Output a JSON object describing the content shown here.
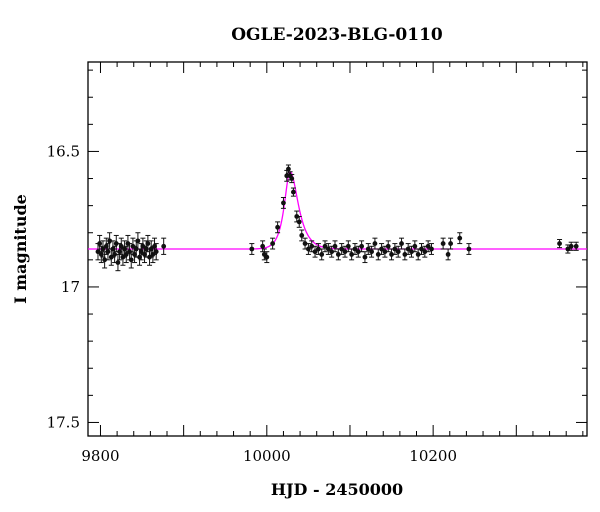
{
  "chart_data": {
    "type": "scatter",
    "title": "OGLE-2023-BLG-0110",
    "xlabel": "HJD - 2450000",
    "ylabel": "I magnitude",
    "xlim": [
      9785,
      10385
    ],
    "ylim": [
      17.55,
      16.17
    ],
    "y_inverted": true,
    "x_ticks": [
      9800,
      10000,
      10200
    ],
    "y_ticks": [
      16.5,
      17,
      17.5
    ],
    "x_tick_labels": [
      "9800",
      "10000",
      "10200"
    ],
    "y_tick_labels": [
      "16.5",
      "17",
      "17.5"
    ],
    "grid": false,
    "colors": {
      "points": "#111111",
      "model": "#ff00ff",
      "frame": "#000000"
    },
    "model": {
      "name": "",
      "baseline_mag": 16.86,
      "peak_time": 10028,
      "peak_mag": 16.575,
      "rise_width": 9,
      "tail_width": 13
    },
    "series": [
      {
        "type": "errorbar",
        "points": [
          {
            "x": 9797,
            "y": 16.87,
            "err": 0.03
          },
          {
            "x": 9799,
            "y": 16.84,
            "err": 0.03
          },
          {
            "x": 9801,
            "y": 16.88,
            "err": 0.03
          },
          {
            "x": 9803,
            "y": 16.86,
            "err": 0.03
          },
          {
            "x": 9805,
            "y": 16.9,
            "err": 0.03
          },
          {
            "x": 9807,
            "y": 16.85,
            "err": 0.03
          },
          {
            "x": 9809,
            "y": 16.87,
            "err": 0.03
          },
          {
            "x": 9811,
            "y": 16.83,
            "err": 0.03
          },
          {
            "x": 9813,
            "y": 16.89,
            "err": 0.03
          },
          {
            "x": 9815,
            "y": 16.86,
            "err": 0.03
          },
          {
            "x": 9817,
            "y": 16.88,
            "err": 0.03
          },
          {
            "x": 9819,
            "y": 16.84,
            "err": 0.03
          },
          {
            "x": 9821,
            "y": 16.91,
            "err": 0.03
          },
          {
            "x": 9823,
            "y": 16.87,
            "err": 0.03
          },
          {
            "x": 9825,
            "y": 16.85,
            "err": 0.03
          },
          {
            "x": 9827,
            "y": 16.89,
            "err": 0.03
          },
          {
            "x": 9829,
            "y": 16.86,
            "err": 0.03
          },
          {
            "x": 9831,
            "y": 16.88,
            "err": 0.03
          },
          {
            "x": 9833,
            "y": 16.84,
            "err": 0.03
          },
          {
            "x": 9835,
            "y": 16.87,
            "err": 0.03
          },
          {
            "x": 9837,
            "y": 16.9,
            "err": 0.03
          },
          {
            "x": 9839,
            "y": 16.85,
            "err": 0.03
          },
          {
            "x": 9841,
            "y": 16.88,
            "err": 0.03
          },
          {
            "x": 9843,
            "y": 16.86,
            "err": 0.03
          },
          {
            "x": 9845,
            "y": 16.83,
            "err": 0.03
          },
          {
            "x": 9847,
            "y": 16.89,
            "err": 0.03
          },
          {
            "x": 9849,
            "y": 16.87,
            "err": 0.03
          },
          {
            "x": 9851,
            "y": 16.85,
            "err": 0.03
          },
          {
            "x": 9853,
            "y": 16.88,
            "err": 0.03
          },
          {
            "x": 9855,
            "y": 16.86,
            "err": 0.03
          },
          {
            "x": 9857,
            "y": 16.84,
            "err": 0.03
          },
          {
            "x": 9859,
            "y": 16.89,
            "err": 0.03
          },
          {
            "x": 9861,
            "y": 16.86,
            "err": 0.03
          },
          {
            "x": 9863,
            "y": 16.88,
            "err": 0.03
          },
          {
            "x": 9865,
            "y": 16.85,
            "err": 0.03
          },
          {
            "x": 9867,
            "y": 16.87,
            "err": 0.03
          },
          {
            "x": 9876,
            "y": 16.85,
            "err": 0.03
          },
          {
            "x": 9982,
            "y": 16.86,
            "err": 0.02
          },
          {
            "x": 9995,
            "y": 16.85,
            "err": 0.02
          },
          {
            "x": 9997,
            "y": 16.88,
            "err": 0.02
          },
          {
            "x": 10000,
            "y": 16.89,
            "err": 0.02
          },
          {
            "x": 10007,
            "y": 16.84,
            "err": 0.02
          },
          {
            "x": 10013,
            "y": 16.78,
            "err": 0.02
          },
          {
            "x": 10020,
            "y": 16.69,
            "err": 0.02
          },
          {
            "x": 10024,
            "y": 16.59,
            "err": 0.02
          },
          {
            "x": 10026,
            "y": 16.565,
            "err": 0.015
          },
          {
            "x": 10028,
            "y": 16.59,
            "err": 0.015
          },
          {
            "x": 10030,
            "y": 16.6,
            "err": 0.015
          },
          {
            "x": 10032,
            "y": 16.65,
            "err": 0.015
          },
          {
            "x": 10036,
            "y": 16.74,
            "err": 0.02
          },
          {
            "x": 10039,
            "y": 16.76,
            "err": 0.02
          },
          {
            "x": 10042,
            "y": 16.81,
            "err": 0.02
          },
          {
            "x": 10046,
            "y": 16.84,
            "err": 0.02
          },
          {
            "x": 10050,
            "y": 16.86,
            "err": 0.02
          },
          {
            "x": 10054,
            "y": 16.85,
            "err": 0.02
          },
          {
            "x": 10058,
            "y": 16.87,
            "err": 0.02
          },
          {
            "x": 10062,
            "y": 16.86,
            "err": 0.02
          },
          {
            "x": 10066,
            "y": 16.88,
            "err": 0.02
          },
          {
            "x": 10070,
            "y": 16.85,
            "err": 0.02
          },
          {
            "x": 10074,
            "y": 16.86,
            "err": 0.02
          },
          {
            "x": 10078,
            "y": 16.87,
            "err": 0.02
          },
          {
            "x": 10082,
            "y": 16.85,
            "err": 0.02
          },
          {
            "x": 10086,
            "y": 16.88,
            "err": 0.02
          },
          {
            "x": 10090,
            "y": 16.86,
            "err": 0.02
          },
          {
            "x": 10094,
            "y": 16.87,
            "err": 0.02
          },
          {
            "x": 10098,
            "y": 16.85,
            "err": 0.02
          },
          {
            "x": 10102,
            "y": 16.88,
            "err": 0.02
          },
          {
            "x": 10106,
            "y": 16.86,
            "err": 0.02
          },
          {
            "x": 10110,
            "y": 16.87,
            "err": 0.02
          },
          {
            "x": 10114,
            "y": 16.85,
            "err": 0.02
          },
          {
            "x": 10118,
            "y": 16.89,
            "err": 0.02
          },
          {
            "x": 10122,
            "y": 16.86,
            "err": 0.02
          },
          {
            "x": 10126,
            "y": 16.87,
            "err": 0.02
          },
          {
            "x": 10130,
            "y": 16.84,
            "err": 0.02
          },
          {
            "x": 10134,
            "y": 16.88,
            "err": 0.02
          },
          {
            "x": 10138,
            "y": 16.86,
            "err": 0.02
          },
          {
            "x": 10142,
            "y": 16.87,
            "err": 0.02
          },
          {
            "x": 10146,
            "y": 16.85,
            "err": 0.02
          },
          {
            "x": 10150,
            "y": 16.88,
            "err": 0.02
          },
          {
            "x": 10154,
            "y": 16.86,
            "err": 0.02
          },
          {
            "x": 10158,
            "y": 16.87,
            "err": 0.02
          },
          {
            "x": 10162,
            "y": 16.84,
            "err": 0.02
          },
          {
            "x": 10166,
            "y": 16.88,
            "err": 0.02
          },
          {
            "x": 10170,
            "y": 16.86,
            "err": 0.02
          },
          {
            "x": 10174,
            "y": 16.87,
            "err": 0.02
          },
          {
            "x": 10178,
            "y": 16.85,
            "err": 0.02
          },
          {
            "x": 10182,
            "y": 16.88,
            "err": 0.02
          },
          {
            "x": 10186,
            "y": 16.86,
            "err": 0.02
          },
          {
            "x": 10190,
            "y": 16.87,
            "err": 0.02
          },
          {
            "x": 10194,
            "y": 16.85,
            "err": 0.02
          },
          {
            "x": 10198,
            "y": 16.86,
            "err": 0.02
          },
          {
            "x": 10212,
            "y": 16.84,
            "err": 0.02
          },
          {
            "x": 10218,
            "y": 16.88,
            "err": 0.02
          },
          {
            "x": 10221,
            "y": 16.84,
            "err": 0.02
          },
          {
            "x": 10232,
            "y": 16.82,
            "err": 0.02
          },
          {
            "x": 10243,
            "y": 16.86,
            "err": 0.02
          },
          {
            "x": 10352,
            "y": 16.84,
            "err": 0.015
          },
          {
            "x": 10362,
            "y": 16.86,
            "err": 0.015
          },
          {
            "x": 10366,
            "y": 16.85,
            "err": 0.015
          },
          {
            "x": 10372,
            "y": 16.85,
            "err": 0.015
          }
        ]
      }
    ]
  }
}
